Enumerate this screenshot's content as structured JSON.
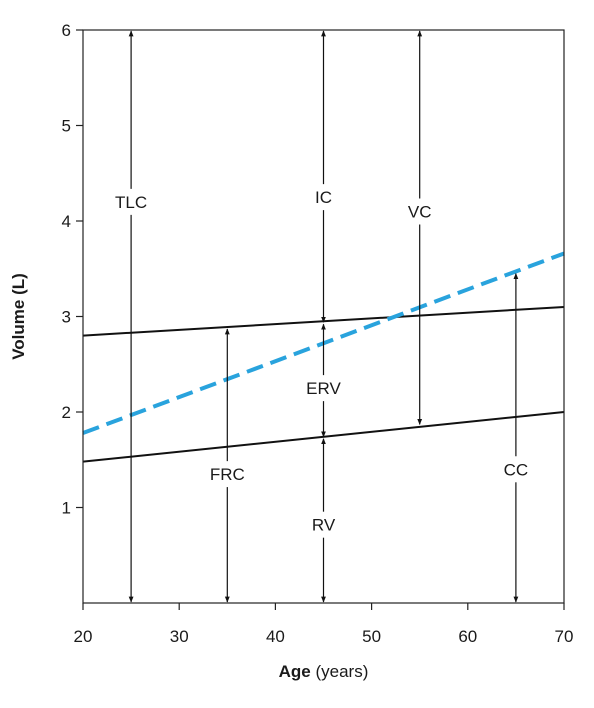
{
  "chart_data": {
    "type": "line",
    "xlabel_bold": "Age",
    "xlabel_rest": " (years)",
    "ylabel": "Volume (L)",
    "xlim": [
      20,
      70
    ],
    "ylim": [
      0,
      6
    ],
    "x_ticks": [
      20,
      30,
      40,
      50,
      60,
      70
    ],
    "y_ticks": [
      1,
      2,
      3,
      4,
      5,
      6
    ],
    "grid": false,
    "series": [
      {
        "x": [
          20,
          70
        ],
        "y": [
          2.8,
          3.1
        ],
        "color": "#111111",
        "dash": false
      },
      {
        "x": [
          20,
          70
        ],
        "y": [
          1.48,
          2.0
        ],
        "color": "#111111",
        "dash": false
      },
      {
        "x": [
          20,
          70
        ],
        "y": [
          1.78,
          3.66
        ],
        "color": "#29a3dd",
        "dash": true
      }
    ],
    "annotations": [
      {
        "label": "TLC",
        "x": 25,
        "y_from": 0,
        "y_to": 6.0,
        "label_y": 4.2
      },
      {
        "label": "IC",
        "x": 45,
        "y_from": 2.93,
        "y_to": 6.0,
        "label_y": 4.25
      },
      {
        "label": "VC",
        "x": 55,
        "y_from": 1.86,
        "y_to": 6.0,
        "label_y": 4.1
      },
      {
        "label": "ERV",
        "x": 45,
        "y_from": 1.73,
        "y_to": 2.93,
        "label_y": 2.25
      },
      {
        "label": "FRC",
        "x": 35,
        "y_from": 0,
        "y_to": 2.88,
        "label_y": 1.35
      },
      {
        "label": "RV",
        "x": 45,
        "y_from": 0,
        "y_to": 1.73,
        "label_y": 0.82
      },
      {
        "label": "CC",
        "x": 65,
        "y_from": 0,
        "y_to": 3.46,
        "label_y": 1.4
      }
    ]
  }
}
